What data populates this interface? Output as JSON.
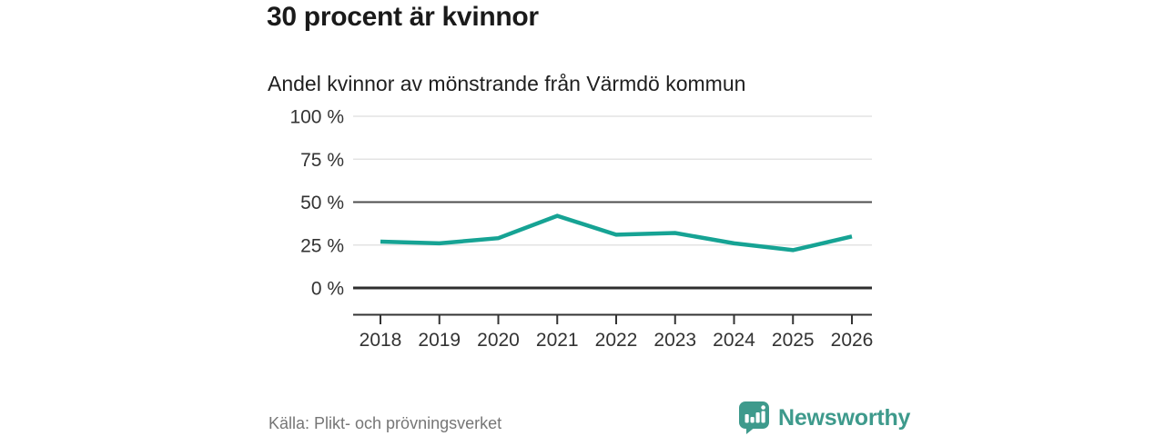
{
  "chart_data": {
    "type": "line",
    "title": "30 procent är kvinnor",
    "subtitle": "Andel kvinnor av mönstrande från Värmdö kommun",
    "categories": [
      "2018",
      "2019",
      "2020",
      "2021",
      "2022",
      "2023",
      "2024",
      "2025",
      "2026"
    ],
    "series": [
      {
        "name": "Andel kvinnor av mönstrande",
        "values": [
          27,
          26,
          29,
          42,
          31,
          32,
          26,
          22,
          30
        ]
      }
    ],
    "unit": "%",
    "xlabel": "",
    "ylabel": "",
    "ylim": [
      0,
      100
    ],
    "yticks": [
      0,
      25,
      50,
      75,
      100
    ],
    "ytick_labels": [
      "0 %",
      "25 %",
      "50 %",
      "75 %",
      "100 %"
    ],
    "emphasized_gridlines": [
      0,
      50
    ],
    "grid": true,
    "legend": "none",
    "line_color": "#16a394"
  },
  "footer": {
    "source": "Källa: Plikt- och prövningsverket",
    "brand": "Newsworthy"
  },
  "colors": {
    "line": "#16a394",
    "grid_light": "#e3e3e3",
    "grid_mid": "#4d4d4d",
    "grid_zero": "#2e2e2e",
    "axis": "#333333",
    "tick_text": "#333333",
    "title": "#1a1a1a",
    "source_text": "#767676",
    "brand_teal": "#3e9a8c"
  }
}
